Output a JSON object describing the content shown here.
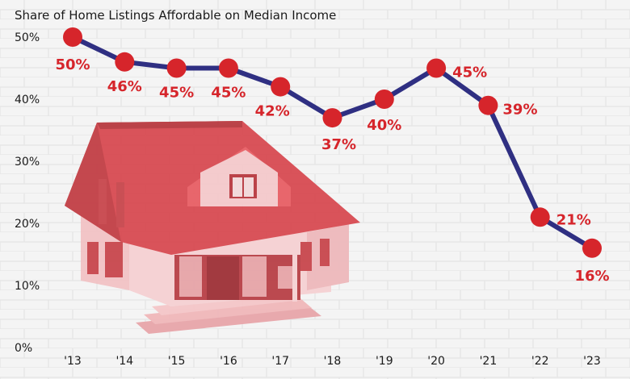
{
  "chart_data": {
    "type": "line",
    "title": "Share of Home Listings Affordable on Median Income",
    "xlabel": "",
    "ylabel": "",
    "x": [
      "'13",
      "'14",
      "'15",
      "'16",
      "'17",
      "'18",
      "'19",
      "'20",
      "'21",
      "'22",
      "'23"
    ],
    "series": [
      {
        "values": [
          50,
          46,
          45,
          45,
          42,
          37,
          40,
          45,
          39,
          21,
          16
        ]
      }
    ],
    "data_labels": [
      "50%",
      "46%",
      "45%",
      "45%",
      "42%",
      "37%",
      "40%",
      "45%",
      "39%",
      "21%",
      "16%"
    ],
    "yticks": [
      "0%",
      "10%",
      "20%",
      "30%",
      "40%",
      "50%"
    ],
    "ylim": [
      0,
      50
    ],
    "grid": false,
    "legend": "none",
    "colors": {
      "line": "#2f2f82",
      "marker": "#d6252b",
      "label": "#d6252b",
      "background": "#f4f4f4",
      "house_roof": "#d9535a",
      "house_wall": "#f3c9cb"
    }
  }
}
